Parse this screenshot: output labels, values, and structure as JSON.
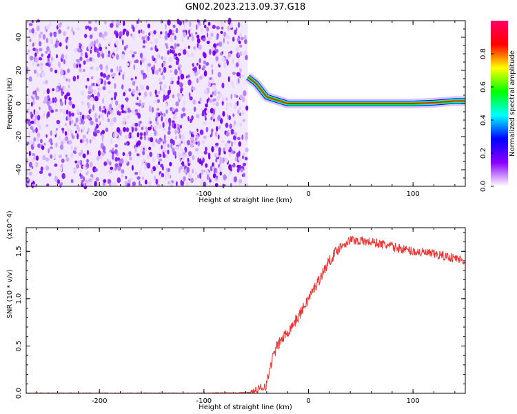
{
  "title": "GN02.2023.213.09.37.G18",
  "chart_data": [
    {
      "type": "heatmap",
      "xlabel": "Height of straight line (km)",
      "ylabel": "Frequency (Hz)",
      "xlim": [
        -270,
        150
      ],
      "ylim": [
        -50,
        50
      ],
      "xticks": [
        -200,
        -100,
        0,
        100
      ],
      "yticks": [
        -40,
        -20,
        0,
        20,
        40
      ],
      "noise_region_x": [
        -270,
        -58
      ],
      "signal_track": {
        "x": [
          -58,
          -50,
          -45,
          -40,
          -35,
          -30,
          -25,
          -20,
          0,
          50,
          100,
          120,
          140,
          150
        ],
        "y": [
          16,
          12,
          8,
          4,
          3,
          2,
          1,
          0,
          0,
          0,
          0,
          0.5,
          1.5,
          1.5
        ]
      },
      "colorbar": {
        "label": "Normalized spectral amplitude",
        "range": [
          0,
          1
        ],
        "ticks": [
          "0.0",
          "0.2",
          "0.4",
          "0.6",
          "0.8"
        ],
        "colors": [
          "#ffffff",
          "#8a00ff",
          "#0000ff",
          "#00ffff",
          "#00ff00",
          "#ffff00",
          "#ff0000",
          "#ff0066"
        ]
      }
    },
    {
      "type": "line",
      "xlabel": "Height of straight line (km)",
      "ylabel": "SNR (10 * v/v)",
      "multiplier": "(x10^4)",
      "xlim": [
        -270,
        150
      ],
      "ylim": [
        0,
        1.75
      ],
      "xticks": [
        -200,
        -100,
        0,
        100
      ],
      "yticks": [
        "0.0",
        "0.5",
        "1.0",
        "1.5"
      ],
      "color": "#ee3333",
      "series": [
        {
          "x": [
            -270,
            -200,
            -100,
            -50,
            -40,
            -35,
            -30,
            -20,
            -10,
            0,
            10,
            20,
            30,
            40,
            60,
            80,
            100,
            120,
            140,
            150
          ],
          "values": [
            0.0,
            0.0,
            0.0,
            0.01,
            0.1,
            0.35,
            0.5,
            0.65,
            0.8,
            1.0,
            1.2,
            1.4,
            1.55,
            1.62,
            1.6,
            1.55,
            1.5,
            1.47,
            1.43,
            1.4
          ]
        }
      ]
    }
  ]
}
